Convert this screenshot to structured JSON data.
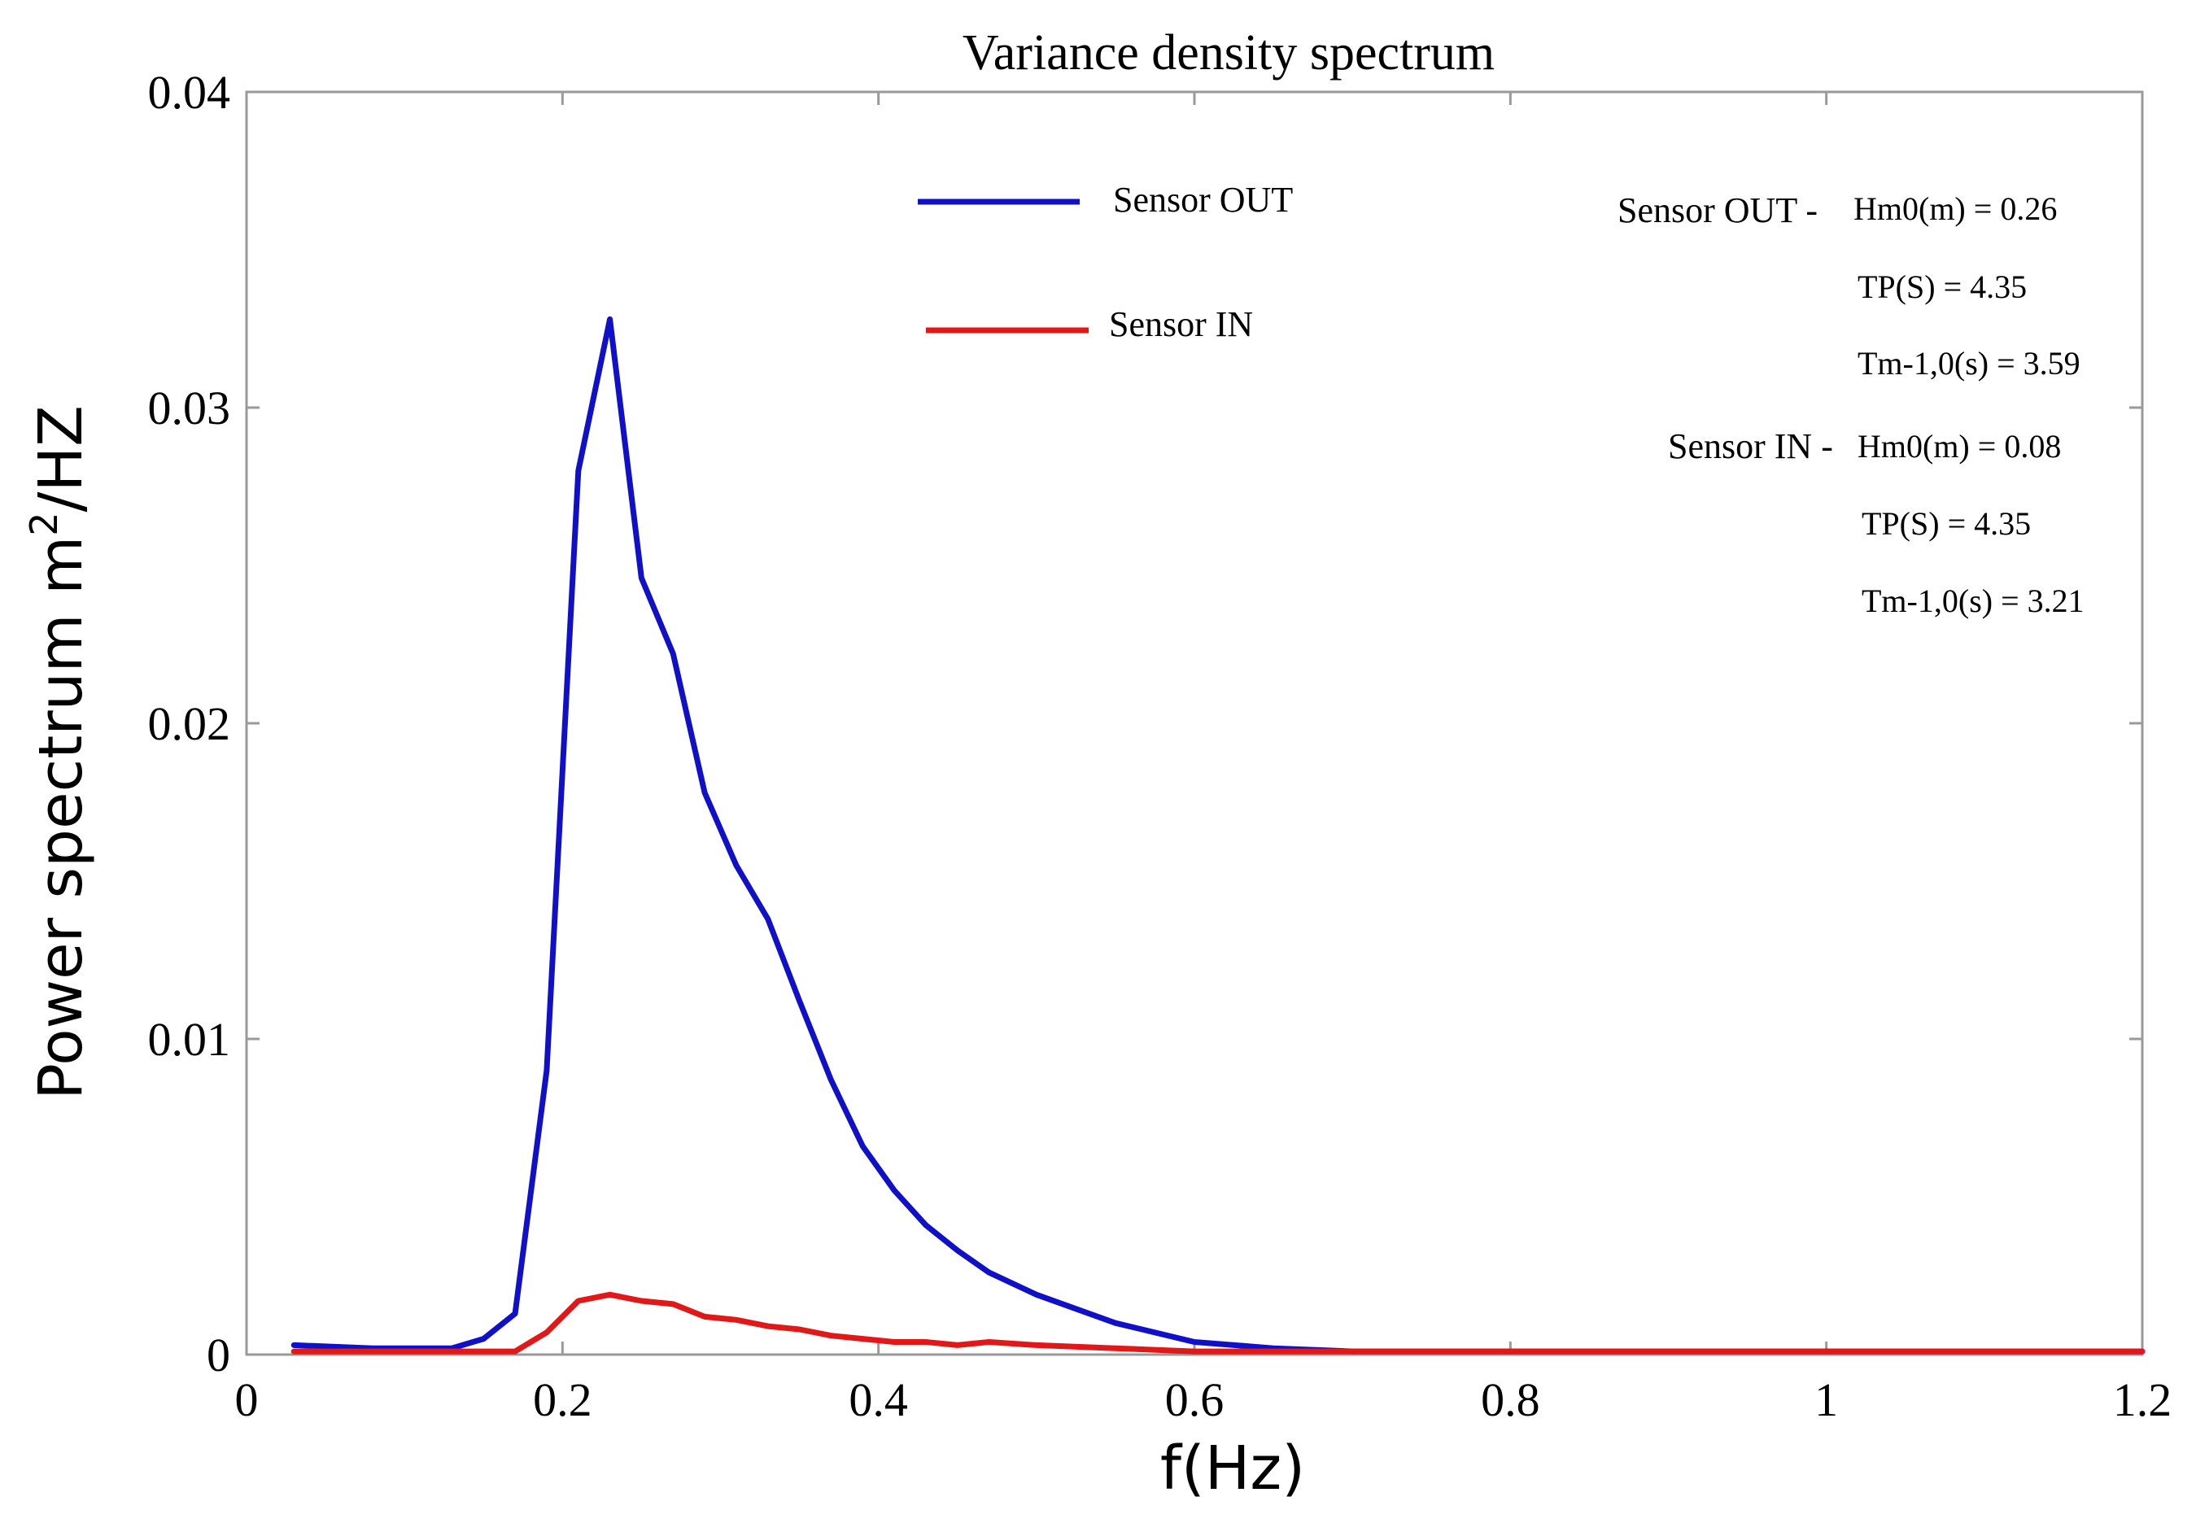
{
  "chart_data": {
    "type": "line",
    "title": "Variance density spectrum",
    "xlabel": "f(Hz)",
    "ylabel_main": "Power spectrum m",
    "ylabel_sup": "2",
    "ylabel_tail": "/HZ",
    "xlim": [
      0,
      1.2
    ],
    "ylim": [
      0,
      0.04
    ],
    "xticks": [
      0,
      0.2,
      0.4,
      0.6,
      0.8,
      1,
      1.2
    ],
    "xtick_labels": [
      "0",
      "0.2",
      "0.4",
      "0.6",
      "0.8",
      "1",
      "1.2"
    ],
    "yticks": [
      0,
      0.01,
      0.02,
      0.03,
      0.04
    ],
    "ytick_labels": [
      "0",
      "0.01",
      "0.02",
      "0.03",
      "0.04"
    ],
    "grid": false,
    "legend_position": "top-center",
    "series": [
      {
        "name": "Sensor OUT",
        "color": "#1010c8",
        "x": [
          0.03,
          0.08,
          0.13,
          0.15,
          0.17,
          0.19,
          0.21,
          0.23,
          0.25,
          0.27,
          0.29,
          0.31,
          0.33,
          0.35,
          0.37,
          0.39,
          0.41,
          0.43,
          0.45,
          0.47,
          0.5,
          0.55,
          0.6,
          0.65,
          0.7,
          0.8,
          0.9,
          1.0,
          1.1,
          1.2
        ],
        "y": [
          0.0003,
          0.0002,
          0.0002,
          0.0005,
          0.0013,
          0.009,
          0.028,
          0.0328,
          0.0246,
          0.0222,
          0.0178,
          0.0155,
          0.0138,
          0.0112,
          0.0087,
          0.0066,
          0.0052,
          0.0041,
          0.0033,
          0.0026,
          0.0019,
          0.001,
          0.0004,
          0.0002,
          0.0001,
          0.0001,
          0.0001,
          0.0001,
          0.0001,
          0.0001
        ]
      },
      {
        "name": "Sensor IN",
        "color": "#e01818",
        "x": [
          0.03,
          0.08,
          0.13,
          0.17,
          0.19,
          0.21,
          0.23,
          0.25,
          0.27,
          0.29,
          0.31,
          0.33,
          0.35,
          0.37,
          0.39,
          0.41,
          0.43,
          0.45,
          0.47,
          0.5,
          0.55,
          0.6,
          0.7,
          0.8,
          0.9,
          1.0,
          1.1,
          1.2
        ],
        "y": [
          0.0001,
          0.0001,
          0.0001,
          0.0001,
          0.0007,
          0.0017,
          0.0019,
          0.0017,
          0.0016,
          0.0012,
          0.0011,
          0.0009,
          0.0008,
          0.0006,
          0.0005,
          0.0004,
          0.0004,
          0.0003,
          0.0004,
          0.0003,
          0.0002,
          0.0001,
          0.0001,
          0.0001,
          0.0001,
          0.0001,
          0.0001,
          0.0001
        ]
      }
    ],
    "annotations": {
      "out_label": "Sensor OUT -",
      "out_hm0": "Hm0(m) = 0.26",
      "out_tp": "TP(S) = 4.35",
      "out_tm": "Tm-1,0(s) = 3.59",
      "in_label": "Sensor IN -",
      "in_hm0": "Hm0(m) = 0.08",
      "in_tp": "TP(S) = 4.35",
      "in_tm": "Tm-1,0(s) = 3.21"
    }
  }
}
